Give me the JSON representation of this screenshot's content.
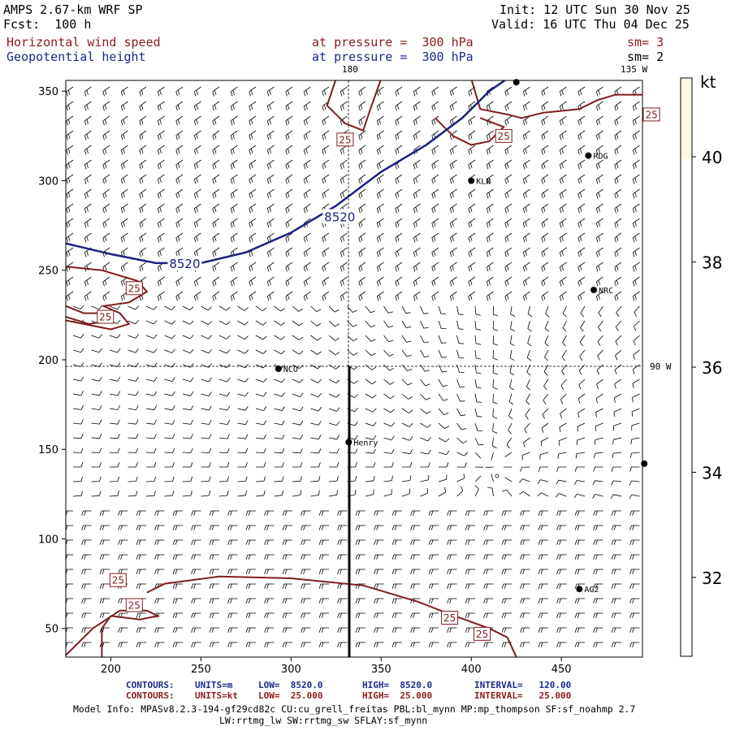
{
  "header": {
    "model_title": "AMPS 2.67-km WRF SP",
    "forecast": "Fcst:  100 h",
    "init": "Init: 12 UTC Sun 30 Nov 25",
    "valid": "Valid: 16 UTC Thu 04 Dec 25",
    "field1_name": "Horizontal wind speed",
    "field1_level": "at pressure =  300 hPa",
    "field1_smooth": "sm= 3",
    "field2_name": "Geopotential height",
    "field2_level": "at pressure =  300 hPa",
    "field2_smooth": "sm= 2"
  },
  "map_labels": {
    "lon_180": "180",
    "lon_135w": "135 W",
    "lon_90w": "90 W"
  },
  "stations": [
    {
      "name": "RDG",
      "x": 465,
      "y": 314
    },
    {
      "name": "KLN",
      "x": 400,
      "y": 300
    },
    {
      "name": "NRC",
      "x": 468,
      "y": 239
    },
    {
      "name": "NCO",
      "x": 293,
      "y": 195
    },
    {
      "name": "Henry",
      "x": 332,
      "y": 154
    },
    {
      "name": "AG2",
      "x": 460,
      "y": 72
    },
    {
      "name": "",
      "x": 425,
      "y": 355
    },
    {
      "name": "",
      "x": 496,
      "y": 142
    }
  ],
  "footer": {
    "c1_label": "CONTOURS:",
    "c1_units": "UNITS=m",
    "c1_low": "LOW=  8520.0",
    "c1_high": "HIGH=  8520.0",
    "c1_interval": "INTERVAL=   120.00",
    "c2_label": "CONTOURS:",
    "c2_units": "UNITS=kt",
    "c2_low": "LOW=  25.000",
    "c2_high": "HIGH=  25.000",
    "c2_interval": "INTERVAL=   25.000",
    "model_info": "Model Info: MPASv8.2.3-194-gf29cd82c CU:cu_grell_freitas PBL:bl_mynn MP:mp_thompson SF:sf_noahmp 2.7",
    "model_info2": "LW:rrtmg_lw SW:rrtmg_sw SFLAY:sf_mynn"
  },
  "colors": {
    "height_contour": "#1a237e",
    "speed_contour": "#7f1d1d",
    "colorbar_fill": "#fdf8e1"
  },
  "chart_data": {
    "type": "contour-map",
    "x_axis": {
      "min": 175,
      "max": 495,
      "ticks": [
        200,
        250,
        300,
        350,
        400,
        450
      ]
    },
    "y_axis": {
      "min": 34,
      "max": 356,
      "ticks": [
        50,
        100,
        150,
        200,
        250,
        300,
        350
      ]
    },
    "height_contour_value": "8520",
    "height_contour_points": [
      [
        175,
        265
      ],
      [
        200,
        259
      ],
      [
        225,
        254
      ],
      [
        250,
        254
      ],
      [
        275,
        260
      ],
      [
        300,
        271
      ],
      [
        325,
        286
      ],
      [
        350,
        305
      ],
      [
        375,
        320
      ],
      [
        395,
        335
      ],
      [
        410,
        350
      ],
      [
        420,
        357
      ]
    ],
    "height_contour_labels": [
      {
        "x": 327,
        "y": 280,
        "text": "8520"
      },
      {
        "x": 241,
        "y": 254,
        "text": "8520"
      }
    ],
    "speed_contour_value": "25",
    "speed_contour_labels": [
      {
        "x": 330,
        "y": 323,
        "text": "25"
      },
      {
        "x": 418,
        "y": 325,
        "text": "25"
      },
      {
        "x": 500,
        "y": 337,
        "text": "25"
      },
      {
        "x": 213,
        "y": 240,
        "text": "25"
      },
      {
        "x": 197,
        "y": 224,
        "text": "25"
      },
      {
        "x": 204,
        "y": 77,
        "text": "25"
      },
      {
        "x": 213,
        "y": 63,
        "text": "25"
      },
      {
        "x": 388,
        "y": 56,
        "text": "25"
      },
      {
        "x": 406,
        "y": 47,
        "text": "25"
      }
    ],
    "speed_contours": [
      [
        [
          175,
          252
        ],
        [
          195,
          250
        ],
        [
          215,
          244
        ],
        [
          220,
          238
        ],
        [
          210,
          232
        ],
        [
          196,
          230
        ],
        [
          205,
          226
        ],
        [
          210,
          220
        ],
        [
          200,
          217
        ],
        [
          185,
          220
        ],
        [
          175,
          222
        ]
      ],
      [
        [
          175,
          230
        ],
        [
          185,
          226
        ],
        [
          196,
          226
        ],
        [
          200,
          222
        ],
        [
          188,
          220
        ],
        [
          175,
          224
        ]
      ],
      [
        [
          325,
          357
        ],
        [
          320,
          342
        ],
        [
          330,
          332
        ],
        [
          340,
          328
        ],
        [
          344,
          340
        ],
        [
          350,
          357
        ]
      ],
      [
        [
          400,
          357
        ],
        [
          405,
          340
        ],
        [
          420,
          337
        ],
        [
          428,
          335
        ],
        [
          440,
          338
        ],
        [
          460,
          340
        ],
        [
          470,
          345
        ],
        [
          480,
          348
        ],
        [
          495,
          348
        ]
      ],
      [
        [
          380,
          335
        ],
        [
          390,
          325
        ],
        [
          400,
          320
        ],
        [
          410,
          322
        ],
        [
          418,
          330
        ],
        [
          405,
          335
        ]
      ],
      [
        [
          220,
          70
        ],
        [
          230,
          75
        ],
        [
          260,
          79
        ],
        [
          300,
          78
        ],
        [
          340,
          74
        ],
        [
          370,
          65
        ],
        [
          388,
          58
        ],
        [
          410,
          50
        ],
        [
          420,
          45
        ],
        [
          425,
          34
        ]
      ],
      [
        [
          175,
          35
        ],
        [
          190,
          50
        ],
        [
          205,
          60
        ],
        [
          220,
          60
        ],
        [
          226,
          57
        ],
        [
          216,
          55
        ],
        [
          200,
          57
        ],
        [
          195,
          50
        ],
        [
          195,
          34
        ]
      ]
    ],
    "colorbar": {
      "title": "kt",
      "ticks": [
        32,
        34,
        36,
        38,
        40
      ],
      "min": 30.5,
      "max": 41.5
    }
  }
}
